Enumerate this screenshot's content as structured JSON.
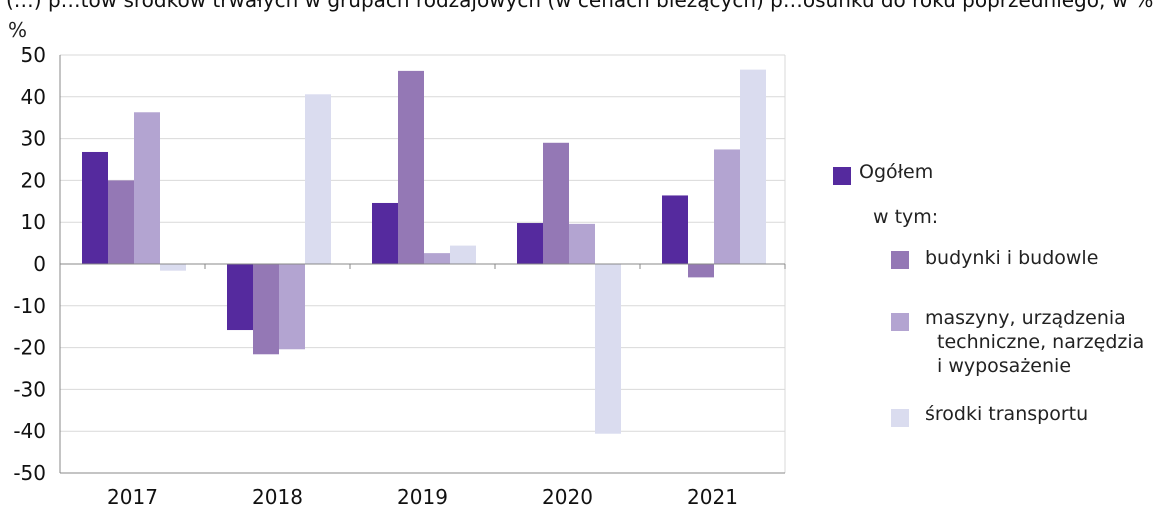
{
  "top_text_cropped": "(…) p…tów środków trwałych w grupach rodzajowych (w cenach bieżących) p…osunku do roku poprzedniego, w %",
  "colors": {
    "ogolem": "#552a9e",
    "budynki": "#9478b5",
    "maszyny": "#b3a4d1",
    "transport": "#dadcef",
    "axis": "#888888",
    "grid": "#d9d9d9"
  },
  "legend": {
    "ogolem": "Ogółem",
    "w_tym": "w tym:",
    "budynki": "budynki i budowle",
    "maszyny_line1": "maszyny, urządzenia",
    "maszyny_line2": "techniczne, narzędzia",
    "maszyny_line3": "i wyposażenie",
    "transport": "środki transportu"
  },
  "chart_data": {
    "type": "bar",
    "ylabel": "%",
    "ylim": [
      -50,
      50
    ],
    "yticks": [
      50,
      40,
      30,
      20,
      10,
      0,
      -10,
      -20,
      -30,
      -40,
      -50
    ],
    "categories": [
      "2017",
      "2018",
      "2019",
      "2020",
      "2021"
    ],
    "grid": true,
    "legend_position": "right",
    "series": [
      {
        "name": "Ogółem",
        "color_key": "ogolem",
        "values": [
          26.8,
          -15.8,
          14.6,
          9.8,
          16.4
        ]
      },
      {
        "name": "budynki i budowle",
        "color_key": "budynki",
        "values": [
          20.0,
          -21.6,
          46.2,
          29.0,
          -3.2
        ]
      },
      {
        "name": "maszyny, urządzenia techniczne, narzędzia i wyposażenie",
        "color_key": "maszyny",
        "values": [
          36.3,
          -20.4,
          2.6,
          9.6,
          27.4
        ]
      },
      {
        "name": "środki transportu",
        "color_key": "transport",
        "values": [
          -1.6,
          40.6,
          4.4,
          -40.6,
          46.5
        ]
      }
    ]
  }
}
